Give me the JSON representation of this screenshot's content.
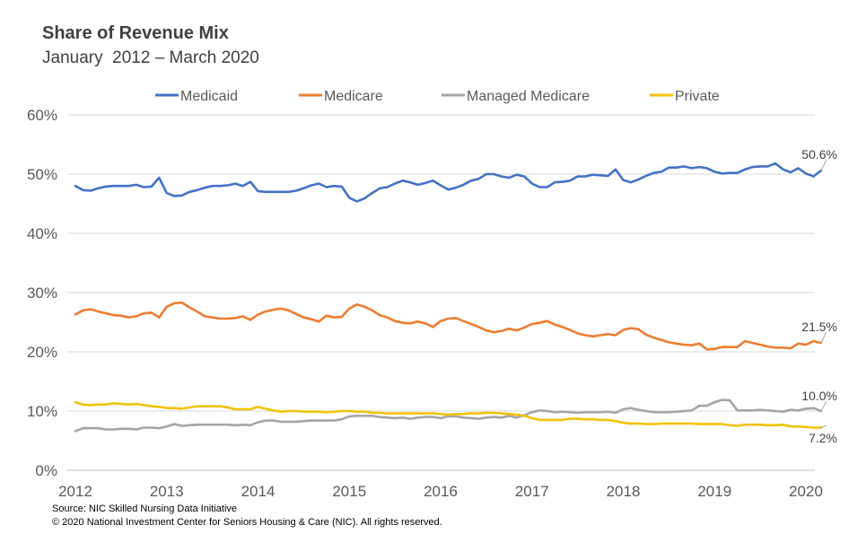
{
  "header": {
    "title": "Share of Revenue Mix",
    "subtitle": "January  2012 – March 2020"
  },
  "footer": {
    "source": "Source: NIC Skilled Nursing Data Initiative",
    "copyright": "© 2020 National Investment Center for Seniors Housing & Care (NIC). All rights reserved."
  },
  "chart_data": {
    "type": "line",
    "title": "Share of Revenue Mix",
    "subtitle": "January  2012 – March 2020",
    "xlabel": "",
    "ylabel": "",
    "x_tick_labels": [
      "2012",
      "2013",
      "2014",
      "2015",
      "2016",
      "2017",
      "2018",
      "2019",
      "2020"
    ],
    "y_tick_labels": [
      "0%",
      "10%",
      "20%",
      "30%",
      "40%",
      "50%",
      "60%"
    ],
    "ylim": [
      0,
      60
    ],
    "grid": true,
    "legend_position": "top",
    "x_start": "2012-01",
    "x_end": "2020-03",
    "series": [
      {
        "name": "Medicaid",
        "color": "#4472C4",
        "end_label": "50.6%",
        "values": [
          48.0,
          47.3,
          47.2,
          47.6,
          47.9,
          48.0,
          48.0,
          48.0,
          48.2,
          47.8,
          47.9,
          49.4,
          46.8,
          46.3,
          46.4,
          47.0,
          47.3,
          47.7,
          48.0,
          48.0,
          48.1,
          48.4,
          48.0,
          48.7,
          47.1,
          47.0,
          47.0,
          47.0,
          47.0,
          47.2,
          47.6,
          48.1,
          48.4,
          47.8,
          48.0,
          47.9,
          46.0,
          45.4,
          45.9,
          46.8,
          47.6,
          47.8,
          48.4,
          48.9,
          48.6,
          48.2,
          48.5,
          48.9,
          48.1,
          47.4,
          47.7,
          48.2,
          48.9,
          49.2,
          50.0,
          50.0,
          49.6,
          49.4,
          49.9,
          49.6,
          48.4,
          47.8,
          47.8,
          48.6,
          48.7,
          48.9,
          49.6,
          49.6,
          49.9,
          49.8,
          49.7,
          50.8,
          49.0,
          48.6,
          49.1,
          49.7,
          50.2,
          50.4,
          51.1,
          51.1,
          51.3,
          51.0,
          51.2,
          51.0,
          50.4,
          50.1,
          50.2,
          50.2,
          50.8,
          51.2,
          51.3,
          51.3,
          51.8,
          50.8,
          50.3,
          51.0,
          50.1,
          49.6,
          50.6
        ]
      },
      {
        "name": "Medicare",
        "color": "#ED7D31",
        "end_label": "21.5%",
        "values": [
          26.3,
          27.0,
          27.2,
          26.8,
          26.5,
          26.2,
          26.1,
          25.8,
          26.0,
          26.5,
          26.6,
          25.8,
          27.6,
          28.2,
          28.3,
          27.5,
          26.8,
          26.0,
          25.8,
          25.6,
          25.6,
          25.7,
          26.0,
          25.4,
          26.3,
          26.8,
          27.1,
          27.3,
          27.0,
          26.4,
          25.8,
          25.5,
          25.1,
          26.1,
          25.8,
          25.9,
          27.3,
          28.0,
          27.6,
          27.0,
          26.2,
          25.8,
          25.2,
          24.9,
          24.8,
          25.1,
          24.8,
          24.2,
          25.2,
          25.6,
          25.7,
          25.2,
          24.7,
          24.2,
          23.6,
          23.3,
          23.5,
          23.9,
          23.6,
          24.1,
          24.7,
          24.9,
          25.2,
          24.6,
          24.2,
          23.7,
          23.1,
          22.8,
          22.6,
          22.8,
          23.0,
          22.8,
          23.7,
          24.0,
          23.8,
          22.9,
          22.4,
          22.0,
          21.6,
          21.4,
          21.2,
          21.1,
          21.4,
          20.4,
          20.5,
          20.8,
          20.8,
          20.8,
          21.8,
          21.5,
          21.2,
          20.9,
          20.7,
          20.7,
          20.6,
          21.4,
          21.2,
          21.8,
          21.5
        ]
      },
      {
        "name": "Managed Medicare",
        "color": "#A5A5A5",
        "end_label": "10.0%",
        "values": [
          6.6,
          7.1,
          7.1,
          7.1,
          6.9,
          6.9,
          7.0,
          7.0,
          6.9,
          7.2,
          7.2,
          7.1,
          7.4,
          7.8,
          7.5,
          7.6,
          7.7,
          7.7,
          7.7,
          7.7,
          7.7,
          7.6,
          7.7,
          7.6,
          8.1,
          8.4,
          8.4,
          8.2,
          8.2,
          8.2,
          8.3,
          8.4,
          8.4,
          8.4,
          8.4,
          8.6,
          9.1,
          9.2,
          9.2,
          9.2,
          9.0,
          8.9,
          8.8,
          8.9,
          8.7,
          8.9,
          9.0,
          9.0,
          8.8,
          9.1,
          9.1,
          8.9,
          8.8,
          8.7,
          8.9,
          9.0,
          8.9,
          9.2,
          8.9,
          9.3,
          9.8,
          10.1,
          10.0,
          9.8,
          9.9,
          9.8,
          9.7,
          9.8,
          9.8,
          9.8,
          9.9,
          9.7,
          10.3,
          10.5,
          10.2,
          10.0,
          9.8,
          9.8,
          9.8,
          9.9,
          10.0,
          10.1,
          10.9,
          10.9,
          11.5,
          11.9,
          11.8,
          10.1,
          10.1,
          10.1,
          10.2,
          10.1,
          10.0,
          9.9,
          10.2,
          10.1,
          10.4,
          10.5,
          10.0
        ]
      },
      {
        "name": "Private",
        "color": "#F2C20A",
        "end_label": "7.2%",
        "values": [
          11.5,
          11.1,
          11.0,
          11.1,
          11.1,
          11.3,
          11.2,
          11.1,
          11.2,
          11.0,
          10.8,
          10.7,
          10.5,
          10.5,
          10.4,
          10.6,
          10.8,
          10.8,
          10.8,
          10.8,
          10.6,
          10.3,
          10.3,
          10.3,
          10.7,
          10.4,
          10.1,
          9.9,
          10.0,
          10.0,
          9.9,
          9.9,
          9.9,
          9.8,
          9.9,
          10.0,
          10.0,
          9.9,
          9.9,
          9.7,
          9.7,
          9.6,
          9.6,
          9.6,
          9.6,
          9.6,
          9.6,
          9.6,
          9.5,
          9.4,
          9.5,
          9.5,
          9.6,
          9.6,
          9.7,
          9.7,
          9.6,
          9.5,
          9.4,
          9.2,
          8.8,
          8.5,
          8.5,
          8.5,
          8.5,
          8.7,
          8.7,
          8.6,
          8.6,
          8.5,
          8.5,
          8.3,
          8.0,
          7.9,
          7.9,
          7.8,
          7.8,
          7.9,
          7.9,
          7.9,
          7.9,
          7.9,
          7.8,
          7.8,
          7.8,
          7.8,
          7.6,
          7.5,
          7.7,
          7.7,
          7.7,
          7.6,
          7.6,
          7.7,
          7.4,
          7.4,
          7.3,
          7.2,
          7.2
        ]
      }
    ]
  }
}
